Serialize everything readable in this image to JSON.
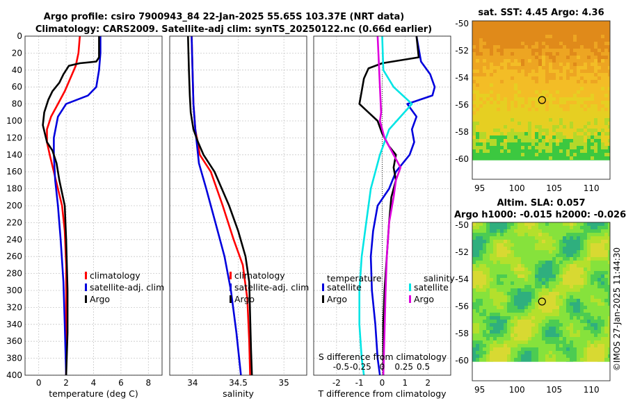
{
  "title": {
    "line1": "Argo profile: csiro 7900943_84 22-Jan-2025 55.65S 103.37E (NRT data)",
    "line2": "Climatology: CARS2009. Satellite-adj clim: synTS_20250122.nc (0.66d earlier)"
  },
  "watermark": "©IMOS 27-Jan-2025 11:44:30",
  "colors": {
    "climatology": "#ff0000",
    "satellite": "#0000dd",
    "argo": "#000000",
    "s_satellite": "#00e5e5",
    "s_argo": "#dd00dd"
  },
  "chart_data": [
    {
      "type": "line",
      "id": "temperature",
      "xlabel": "temperature (deg C)",
      "ylabel": "",
      "xlim": [
        -1,
        9
      ],
      "ylim": [
        400,
        0
      ],
      "xticks": [
        0,
        2,
        4,
        6,
        8
      ],
      "yticks": [
        0,
        20,
        40,
        60,
        80,
        100,
        120,
        140,
        160,
        180,
        200,
        220,
        240,
        260,
        280,
        300,
        320,
        340,
        360,
        380,
        400
      ],
      "legend": [
        "climatology",
        "satellite-adj. clim",
        "Argo"
      ],
      "series": [
        {
          "name": "climatology",
          "color": "climatology",
          "points": [
            [
              3.0,
              0
            ],
            [
              2.9,
              20
            ],
            [
              2.7,
              35
            ],
            [
              2.3,
              50
            ],
            [
              1.9,
              65
            ],
            [
              1.4,
              80
            ],
            [
              0.9,
              95
            ],
            [
              0.6,
              110
            ],
            [
              0.6,
              125
            ],
            [
              0.8,
              140
            ],
            [
              1.1,
              160
            ],
            [
              1.4,
              180
            ],
            [
              1.7,
              200
            ],
            [
              1.9,
              230
            ],
            [
              2.0,
              270
            ],
            [
              2.0,
              320
            ],
            [
              2.0,
              360
            ],
            [
              2.0,
              400
            ]
          ]
        },
        {
          "name": "satellite-adj. clim",
          "color": "satellite",
          "points": [
            [
              4.5,
              0
            ],
            [
              4.5,
              20
            ],
            [
              4.4,
              40
            ],
            [
              4.2,
              60
            ],
            [
              3.6,
              70
            ],
            [
              2.0,
              80
            ],
            [
              1.4,
              95
            ],
            [
              1.1,
              120
            ],
            [
              1.1,
              140
            ],
            [
              1.2,
              170
            ],
            [
              1.4,
              200
            ],
            [
              1.6,
              240
            ],
            [
              1.8,
              290
            ],
            [
              1.9,
              340
            ],
            [
              2.0,
              400
            ]
          ]
        },
        {
          "name": "Argo",
          "color": "argo",
          "points": [
            [
              4.4,
              0
            ],
            [
              4.4,
              25
            ],
            [
              4.2,
              30
            ],
            [
              3.0,
              32
            ],
            [
              2.2,
              35
            ],
            [
              1.8,
              45
            ],
            [
              1.5,
              55
            ],
            [
              1.0,
              65
            ],
            [
              0.7,
              75
            ],
            [
              0.4,
              90
            ],
            [
              0.3,
              105
            ],
            [
              0.6,
              125
            ],
            [
              1.0,
              135
            ],
            [
              1.3,
              150
            ],
            [
              1.5,
              170
            ],
            [
              1.7,
              185
            ],
            [
              1.9,
              200
            ],
            [
              2.0,
              240
            ],
            [
              2.1,
              300
            ],
            [
              2.1,
              350
            ],
            [
              2.0,
              400
            ]
          ]
        }
      ]
    },
    {
      "type": "line",
      "id": "salinity",
      "xlabel": "salinity",
      "ylabel": "",
      "xlim": [
        33.75,
        35.25
      ],
      "ylim": [
        400,
        0
      ],
      "xticks": [
        34,
        34.5,
        35
      ],
      "legend": [
        "climatology",
        "satellite-adj. clim",
        "Argo"
      ],
      "series": [
        {
          "name": "climatology",
          "color": "climatology",
          "points": [
            [
              33.99,
              0
            ],
            [
              34.0,
              40
            ],
            [
              34.01,
              80
            ],
            [
              34.03,
              110
            ],
            [
              34.08,
              140
            ],
            [
              34.2,
              160
            ],
            [
              34.33,
              200
            ],
            [
              34.45,
              240
            ],
            [
              34.55,
              270
            ],
            [
              34.6,
              310
            ],
            [
              34.62,
              360
            ],
            [
              34.63,
              400
            ]
          ]
        },
        {
          "name": "satellite-adj. clim",
          "color": "satellite",
          "points": [
            [
              33.99,
              0
            ],
            [
              34.0,
              40
            ],
            [
              34.01,
              80
            ],
            [
              34.03,
              110
            ],
            [
              34.07,
              150
            ],
            [
              34.15,
              180
            ],
            [
              34.25,
              220
            ],
            [
              34.35,
              260
            ],
            [
              34.42,
              300
            ],
            [
              34.48,
              350
            ],
            [
              34.53,
              400
            ]
          ]
        },
        {
          "name": "Argo",
          "color": "argo",
          "points": [
            [
              33.95,
              0
            ],
            [
              33.96,
              40
            ],
            [
              33.97,
              70
            ],
            [
              33.98,
              90
            ],
            [
              34.01,
              110
            ],
            [
              34.06,
              125
            ],
            [
              34.12,
              140
            ],
            [
              34.24,
              160
            ],
            [
              34.32,
              180
            ],
            [
              34.4,
              200
            ],
            [
              34.5,
              230
            ],
            [
              34.58,
              260
            ],
            [
              34.62,
              290
            ],
            [
              34.63,
              330
            ],
            [
              34.64,
              370
            ],
            [
              34.65,
              400
            ]
          ]
        }
      ]
    },
    {
      "type": "line",
      "id": "difference",
      "xlabel": "T difference from climatology",
      "ylabel": "",
      "top_label": "S difference from climatology",
      "xlim": [
        -3.0,
        3.0
      ],
      "ylim": [
        400,
        0
      ],
      "xticks": [
        -2,
        -1,
        0,
        1,
        2
      ],
      "top_ticks": [
        "-0.5",
        "-0.25",
        "0",
        "0.25",
        "0.5"
      ],
      "top_tick_values": [
        -1.8,
        -0.95,
        0,
        0.95,
        1.8
      ],
      "legend_groups": {
        "left_title": "temperature",
        "right_title": "salinity",
        "left": [
          "satellite",
          "Argo"
        ],
        "right": [
          "satellite",
          "Argo"
        ]
      },
      "series": [
        {
          "name": "T satellite",
          "color": "satellite",
          "points": [
            [
              1.5,
              0
            ],
            [
              1.7,
              30
            ],
            [
              2.1,
              45
            ],
            [
              2.3,
              60
            ],
            [
              2.2,
              70
            ],
            [
              1.1,
              80
            ],
            [
              1.5,
              95
            ],
            [
              1.3,
              110
            ],
            [
              1.4,
              125
            ],
            [
              1.2,
              140
            ],
            [
              0.6,
              160
            ],
            [
              0.3,
              180
            ],
            [
              -0.2,
              200
            ],
            [
              -0.4,
              230
            ],
            [
              -0.5,
              260
            ],
            [
              -0.45,
              300
            ],
            [
              -0.3,
              340
            ],
            [
              -0.2,
              380
            ],
            [
              -0.1,
              400
            ]
          ]
        },
        {
          "name": "T Argo",
          "color": "argo",
          "points": [
            [
              1.5,
              0
            ],
            [
              1.6,
              25
            ],
            [
              0.0,
              32
            ],
            [
              -0.6,
              38
            ],
            [
              -0.8,
              50
            ],
            [
              -0.9,
              65
            ],
            [
              -1.0,
              80
            ],
            [
              -0.6,
              90
            ],
            [
              -0.2,
              100
            ],
            [
              0.0,
              115
            ],
            [
              0.3,
              130
            ],
            [
              0.6,
              140
            ],
            [
              0.5,
              155
            ],
            [
              0.6,
              170
            ],
            [
              0.4,
              190
            ],
            [
              0.3,
              220
            ],
            [
              0.2,
              260
            ],
            [
              0.1,
              300
            ],
            [
              0.05,
              340
            ],
            [
              0.05,
              380
            ],
            [
              0.05,
              400
            ]
          ]
        },
        {
          "name": "S satellite",
          "color": "s_satellite",
          "points": [
            [
              0.0,
              0
            ],
            [
              0.05,
              40
            ],
            [
              0.5,
              60
            ],
            [
              1.3,
              80
            ],
            [
              0.3,
              110
            ],
            [
              -0.1,
              140
            ],
            [
              -0.5,
              180
            ],
            [
              -0.7,
              220
            ],
            [
              -0.9,
              260
            ],
            [
              -1.0,
              300
            ],
            [
              -1.0,
              340
            ],
            [
              -0.9,
              380
            ],
            [
              -0.8,
              400
            ]
          ]
        },
        {
          "name": "S Argo",
          "color": "s_argo",
          "points": [
            [
              -0.2,
              0
            ],
            [
              -0.15,
              30
            ],
            [
              -0.1,
              60
            ],
            [
              -0.05,
              90
            ],
            [
              -0.1,
              100
            ],
            [
              0.1,
              120
            ],
            [
              0.5,
              140
            ],
            [
              0.8,
              155
            ],
            [
              0.6,
              170
            ],
            [
              0.5,
              190
            ],
            [
              0.3,
              220
            ],
            [
              0.2,
              260
            ],
            [
              0.15,
              300
            ],
            [
              0.1,
              350
            ],
            [
              0.05,
              400
            ]
          ]
        }
      ]
    },
    {
      "type": "heatmap",
      "id": "sst_map",
      "title": "sat. SST: 4.45 Argo: 4.36",
      "xlim": [
        94,
        112.5
      ],
      "ylim": [
        -61.5,
        -49.8
      ],
      "xticks": [
        95,
        100,
        105,
        110
      ],
      "yticks": [
        -50,
        -52,
        -54,
        -56,
        -58,
        -60
      ],
      "marker": [
        103.37,
        -55.65
      ]
    },
    {
      "type": "heatmap",
      "id": "sla_map",
      "title_line1": "Altim. SLA: 0.057",
      "title_line2": "Argo h1000: -0.015 h2000: -0.026",
      "xlim": [
        94,
        112.5
      ],
      "ylim": [
        -61.5,
        -49.8
      ],
      "xticks": [
        95,
        100,
        105,
        110
      ],
      "yticks": [
        -50,
        -52,
        -54,
        -56,
        -58,
        -60
      ],
      "marker": [
        103.37,
        -55.65
      ]
    }
  ]
}
